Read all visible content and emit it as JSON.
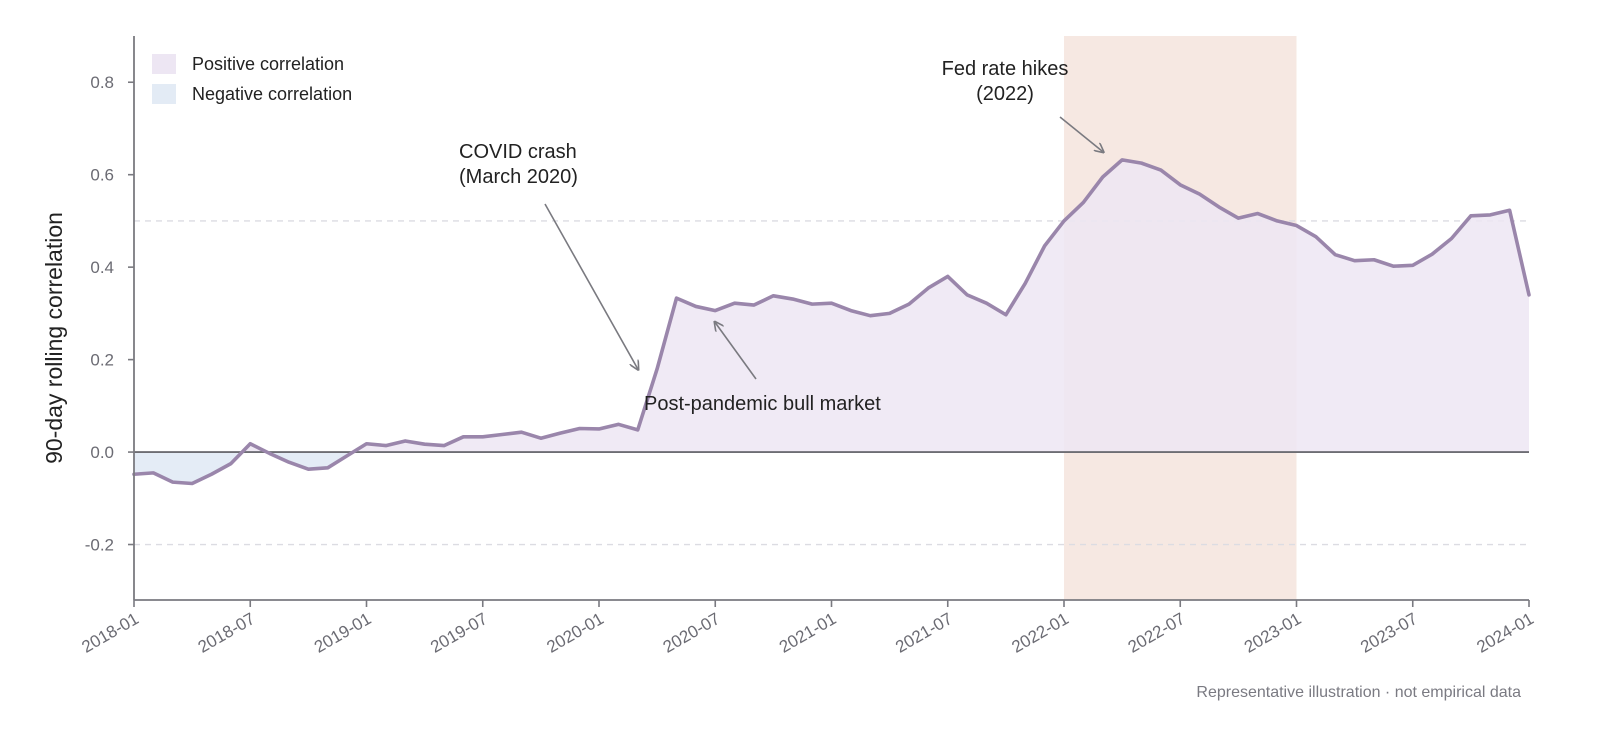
{
  "chart_data": {
    "type": "area",
    "ylabel": "90-day rolling correlation",
    "ylim": [
      -0.32,
      0.9
    ],
    "y_ticks": [
      -0.2,
      0.0,
      0.2,
      0.4,
      0.6,
      0.8
    ],
    "y_tick_labels": [
      "-0.2",
      "0.0",
      "0.2",
      "0.4",
      "0.6",
      "0.8"
    ],
    "xlim": [
      "2018-01",
      "2024-01"
    ],
    "x_ticks": [
      "2018-01",
      "2018-07",
      "2019-01",
      "2019-07",
      "2020-01",
      "2020-07",
      "2021-01",
      "2021-07",
      "2022-01",
      "2022-07",
      "2023-01",
      "2023-07",
      "2024-01"
    ],
    "reference_lines": [
      0.5,
      -0.2
    ],
    "zero_line": 0.0,
    "shaded_region": {
      "start": "2022-01",
      "end": "2023-01",
      "color": "#f5e6df"
    },
    "legend": {
      "placement": "top-left",
      "items": [
        {
          "label": "Positive correlation",
          "color": "#ede6f3"
        },
        {
          "label": "Negative correlation",
          "color": "#e3ebf5"
        }
      ]
    },
    "colors": {
      "line": "#9a86ab",
      "positive_fill": "#ede6f3",
      "negative_fill": "#e3ebf5"
    },
    "series": [
      {
        "x": [
          "2018-01",
          "2018-02",
          "2018-03",
          "2018-04",
          "2018-05",
          "2018-06",
          "2018-07",
          "2018-08",
          "2018-09",
          "2018-10",
          "2018-11",
          "2018-12",
          "2019-01",
          "2019-02",
          "2019-03",
          "2019-04",
          "2019-05",
          "2019-06",
          "2019-07",
          "2019-08",
          "2019-09",
          "2019-10",
          "2019-11",
          "2019-12",
          "2020-01",
          "2020-02",
          "2020-03",
          "2020-04",
          "2020-05",
          "2020-06",
          "2020-07",
          "2020-08",
          "2020-09",
          "2020-10",
          "2020-11",
          "2020-12",
          "2021-01",
          "2021-02",
          "2021-03",
          "2021-04",
          "2021-05",
          "2021-06",
          "2021-07",
          "2021-08",
          "2021-09",
          "2021-10",
          "2021-11",
          "2021-12",
          "2022-01",
          "2022-02",
          "2022-03",
          "2022-04",
          "2022-05",
          "2022-06",
          "2022-07",
          "2022-08",
          "2022-09",
          "2022-10",
          "2022-11",
          "2022-12",
          "2023-01",
          "2023-02",
          "2023-03",
          "2023-04",
          "2023-05",
          "2023-06",
          "2023-07",
          "2023-08",
          "2023-09",
          "2023-10",
          "2023-11",
          "2023-12",
          "2024-01"
        ],
        "values": [
          -0.048,
          -0.045,
          -0.065,
          -0.068,
          -0.048,
          -0.025,
          0.018,
          -0.003,
          -0.022,
          -0.037,
          -0.034,
          -0.008,
          0.018,
          0.014,
          0.024,
          0.017,
          0.014,
          0.033,
          0.033,
          0.038,
          0.043,
          0.03,
          0.041,
          0.051,
          0.05,
          0.06,
          0.048,
          0.18,
          0.333,
          0.315,
          0.306,
          0.322,
          0.318,
          0.338,
          0.331,
          0.32,
          0.322,
          0.306,
          0.295,
          0.3,
          0.32,
          0.355,
          0.38,
          0.34,
          0.322,
          0.297,
          0.365,
          0.446,
          0.5,
          0.54,
          0.595,
          0.632,
          0.625,
          0.61,
          0.578,
          0.558,
          0.53,
          0.506,
          0.516,
          0.5,
          0.49,
          0.466,
          0.427,
          0.414,
          0.416,
          0.402,
          0.404,
          0.428,
          0.462,
          0.511,
          0.513,
          0.523,
          0.34
        ]
      }
    ],
    "annotations": [
      {
        "lines": [
          "COVID crash",
          "(March 2020)"
        ],
        "target": [
          "2020-03",
          0.18
        ]
      },
      {
        "lines": [
          "Post-pandemic bull market"
        ],
        "target": [
          "2020-07",
          0.28
        ]
      },
      {
        "lines": [
          "Fed rate hikes",
          "(2022)"
        ],
        "target": [
          "2022-03",
          0.65
        ]
      }
    ],
    "footnote": "Representative illustration · not empirical data"
  }
}
